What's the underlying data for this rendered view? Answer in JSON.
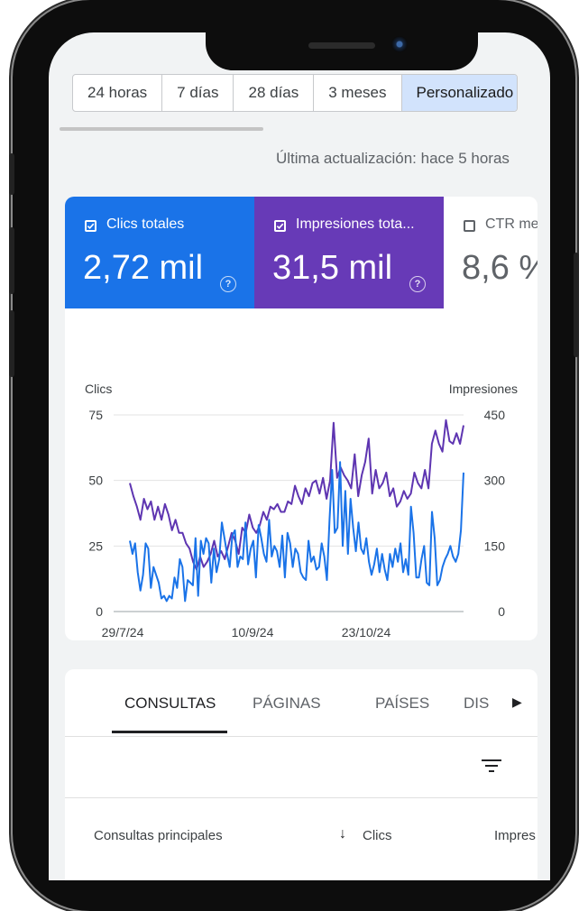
{
  "date_range": {
    "options": [
      "24 horas",
      "7 días",
      "28 días",
      "3 meses",
      "Personalizado"
    ],
    "selected": "Personalizado"
  },
  "last_update": "Última actualización: hace 5 horas",
  "metrics": [
    {
      "label": "Clics totales",
      "value": "2,72 mil",
      "checked": true,
      "color": "#1a73e8"
    },
    {
      "label": "Impresiones tota...",
      "value": "31,5 mil",
      "checked": true,
      "color": "#673ab7"
    },
    {
      "label": "CTR me",
      "value": "8,6 %",
      "checked": false,
      "color": "#ffffff"
    }
  ],
  "chart_data": {
    "type": "line",
    "left_axis_label": "Clics",
    "right_axis_label": "Impresiones",
    "left_ticks": [
      "75",
      "50",
      "25",
      "0"
    ],
    "right_ticks": [
      "450",
      "300",
      "150",
      "0"
    ],
    "ylim_left": [
      0,
      75
    ],
    "ylim_right": [
      0,
      450
    ],
    "x_ticks": [
      "29/7/24",
      "10/9/24",
      "23/10/24"
    ],
    "series": [
      {
        "name": "Clics",
        "axis": "left",
        "color": "#1a73e8",
        "values": [
          27,
          22,
          26,
          15,
          8,
          14,
          26,
          24,
          9,
          17,
          14,
          11,
          5,
          6,
          4,
          6,
          5,
          13,
          9,
          20,
          17,
          4,
          12,
          11,
          10,
          28,
          6,
          27,
          22,
          28,
          26,
          11,
          24,
          15,
          20,
          34,
          28,
          22,
          17,
          29,
          31,
          17,
          21,
          20,
          34,
          18,
          24,
          27,
          13,
          33,
          28,
          22,
          19,
          35,
          21,
          25,
          23,
          17,
          29,
          13,
          30,
          26,
          17,
          24,
          22,
          15,
          13,
          12,
          27,
          19,
          21,
          16,
          17,
          26,
          21,
          12,
          35,
          54,
          30,
          32,
          57,
          25,
          46,
          22,
          43,
          32,
          23,
          34,
          24,
          22,
          28,
          19,
          14,
          18,
          24,
          15,
          22,
          16,
          12,
          22,
          17,
          24,
          19,
          26,
          15,
          20,
          14,
          40,
          30,
          13,
          13,
          20,
          25,
          11,
          10,
          38,
          28,
          10,
          12,
          17,
          20,
          22,
          25,
          21,
          19,
          22,
          31,
          53
        ]
      },
      {
        "name": "Impresiones",
        "axis": "left",
        "color": "#5e35b1",
        "values": [
          49,
          44,
          40,
          35,
          43,
          39,
          42,
          35,
          40,
          35,
          41,
          37,
          31,
          35,
          30,
          30,
          26,
          24,
          19,
          16,
          21,
          17,
          19,
          22,
          27,
          21,
          23,
          20,
          25,
          30,
          27,
          22,
          32,
          30,
          37,
          32,
          30,
          33,
          38,
          35,
          40,
          39,
          41,
          38,
          38,
          42,
          41,
          48,
          44,
          41,
          47,
          44,
          49,
          50,
          45,
          51,
          43,
          50,
          72,
          51,
          55,
          52,
          50,
          47,
          60,
          44,
          52,
          57,
          66,
          45,
          54,
          47,
          49,
          53,
          44,
          47,
          40,
          42,
          46,
          43,
          45,
          53,
          49,
          47,
          54,
          47,
          64,
          69,
          64,
          61,
          73,
          65,
          64,
          68,
          64,
          71
        ]
      }
    ]
  },
  "tabs": [
    {
      "label": "CONSULTAS",
      "active": true
    },
    {
      "label": "PÁGINAS",
      "active": false
    },
    {
      "label": "PAÍSES",
      "active": false
    },
    {
      "label": "DIS",
      "active": false
    }
  ],
  "table": {
    "col_query": "Consultas principales",
    "col_clicks": "Clics",
    "col_impr": "Impres"
  }
}
